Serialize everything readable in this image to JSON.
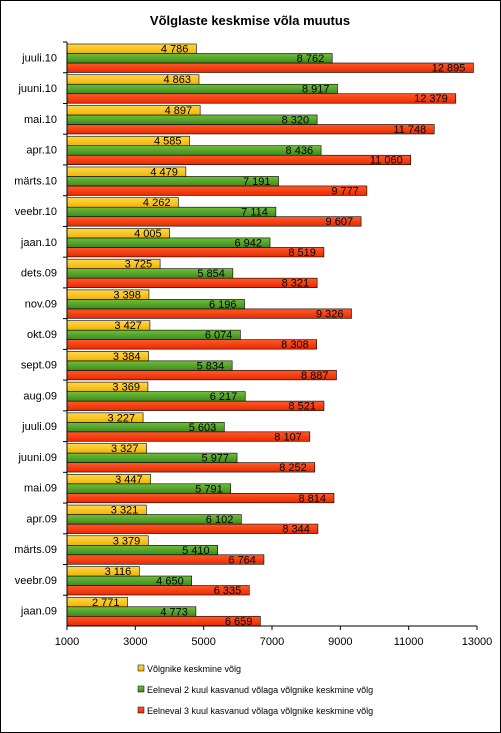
{
  "chart_data": {
    "type": "bar",
    "orientation": "horizontal",
    "title": "Võlglaste keskmise võla muutus",
    "categories": [
      "jaan.09",
      "veebr.09",
      "märts.09",
      "apr.09",
      "mai.09",
      "juuni.09",
      "juuli.09",
      "aug.09",
      "sept.09",
      "okt.09",
      "nov.09",
      "dets.09",
      "jaan.10",
      "veebr.10",
      "märts.10",
      "apr.10",
      "mai.10",
      "juuni.10",
      "juuli.10"
    ],
    "series": [
      {
        "name": "Võlgnike keskmine võlg",
        "color": "#FFC000",
        "values": [
          2771,
          3116,
          3379,
          3321,
          3447,
          3327,
          3227,
          3369,
          3384,
          3427,
          3398,
          3725,
          4005,
          4262,
          4479,
          4585,
          4897,
          4863,
          4786
        ],
        "labels": [
          "2 771",
          "3 116",
          "3 379",
          "3 321",
          "3 447",
          "3 327",
          "3 227",
          "3 369",
          "3 384",
          "3 427",
          "3 398",
          "3 725",
          "4 005",
          "4 262",
          "4 479",
          "4 585",
          "4 897",
          "4 863",
          "4 786"
        ]
      },
      {
        "name": "Eelneval 2 kuul kasvanud võlaga võlgnike keskmine võlg",
        "color": "#4E9A2A",
        "values": [
          4773,
          4650,
          5410,
          6102,
          5791,
          5977,
          5603,
          6217,
          5834,
          6074,
          6196,
          5854,
          6942,
          7114,
          7191,
          8436,
          8320,
          8917,
          8762
        ],
        "labels": [
          "4 773",
          "4 650",
          "5 410",
          "6 102",
          "5 791",
          "5 977",
          "5 603",
          "6 217",
          "5 834",
          "6 074",
          "6 196",
          "5 854",
          "6 942",
          "7 114",
          "7 191",
          "8 436",
          "8 320",
          "8 917",
          "8 762"
        ]
      },
      {
        "name": "Eelneval 3 kuul kasvanud võlaga võlgnike keskmine võlg",
        "color": "#FF3300",
        "values": [
          6659,
          6335,
          6764,
          8344,
          8814,
          8252,
          8107,
          8521,
          8887,
          8308,
          9326,
          8321,
          8519,
          9607,
          9777,
          11060,
          11748,
          12379,
          12895
        ],
        "labels": [
          "6 659",
          "6 335",
          "6 764",
          "8 344",
          "8 814",
          "8 252",
          "8 107",
          "8 521",
          "8 887",
          "8 308",
          "9 326",
          "8 321",
          "8 519",
          "9 607",
          "9 777",
          "11 060",
          "11 748",
          "12 379",
          "12 895"
        ]
      }
    ],
    "xlim": [
      1000,
      13000
    ],
    "xticks": [
      "1000",
      "3000",
      "5000",
      "7000",
      "9000",
      "11000",
      "13000"
    ],
    "grid": false,
    "legend_position": "bottom"
  }
}
